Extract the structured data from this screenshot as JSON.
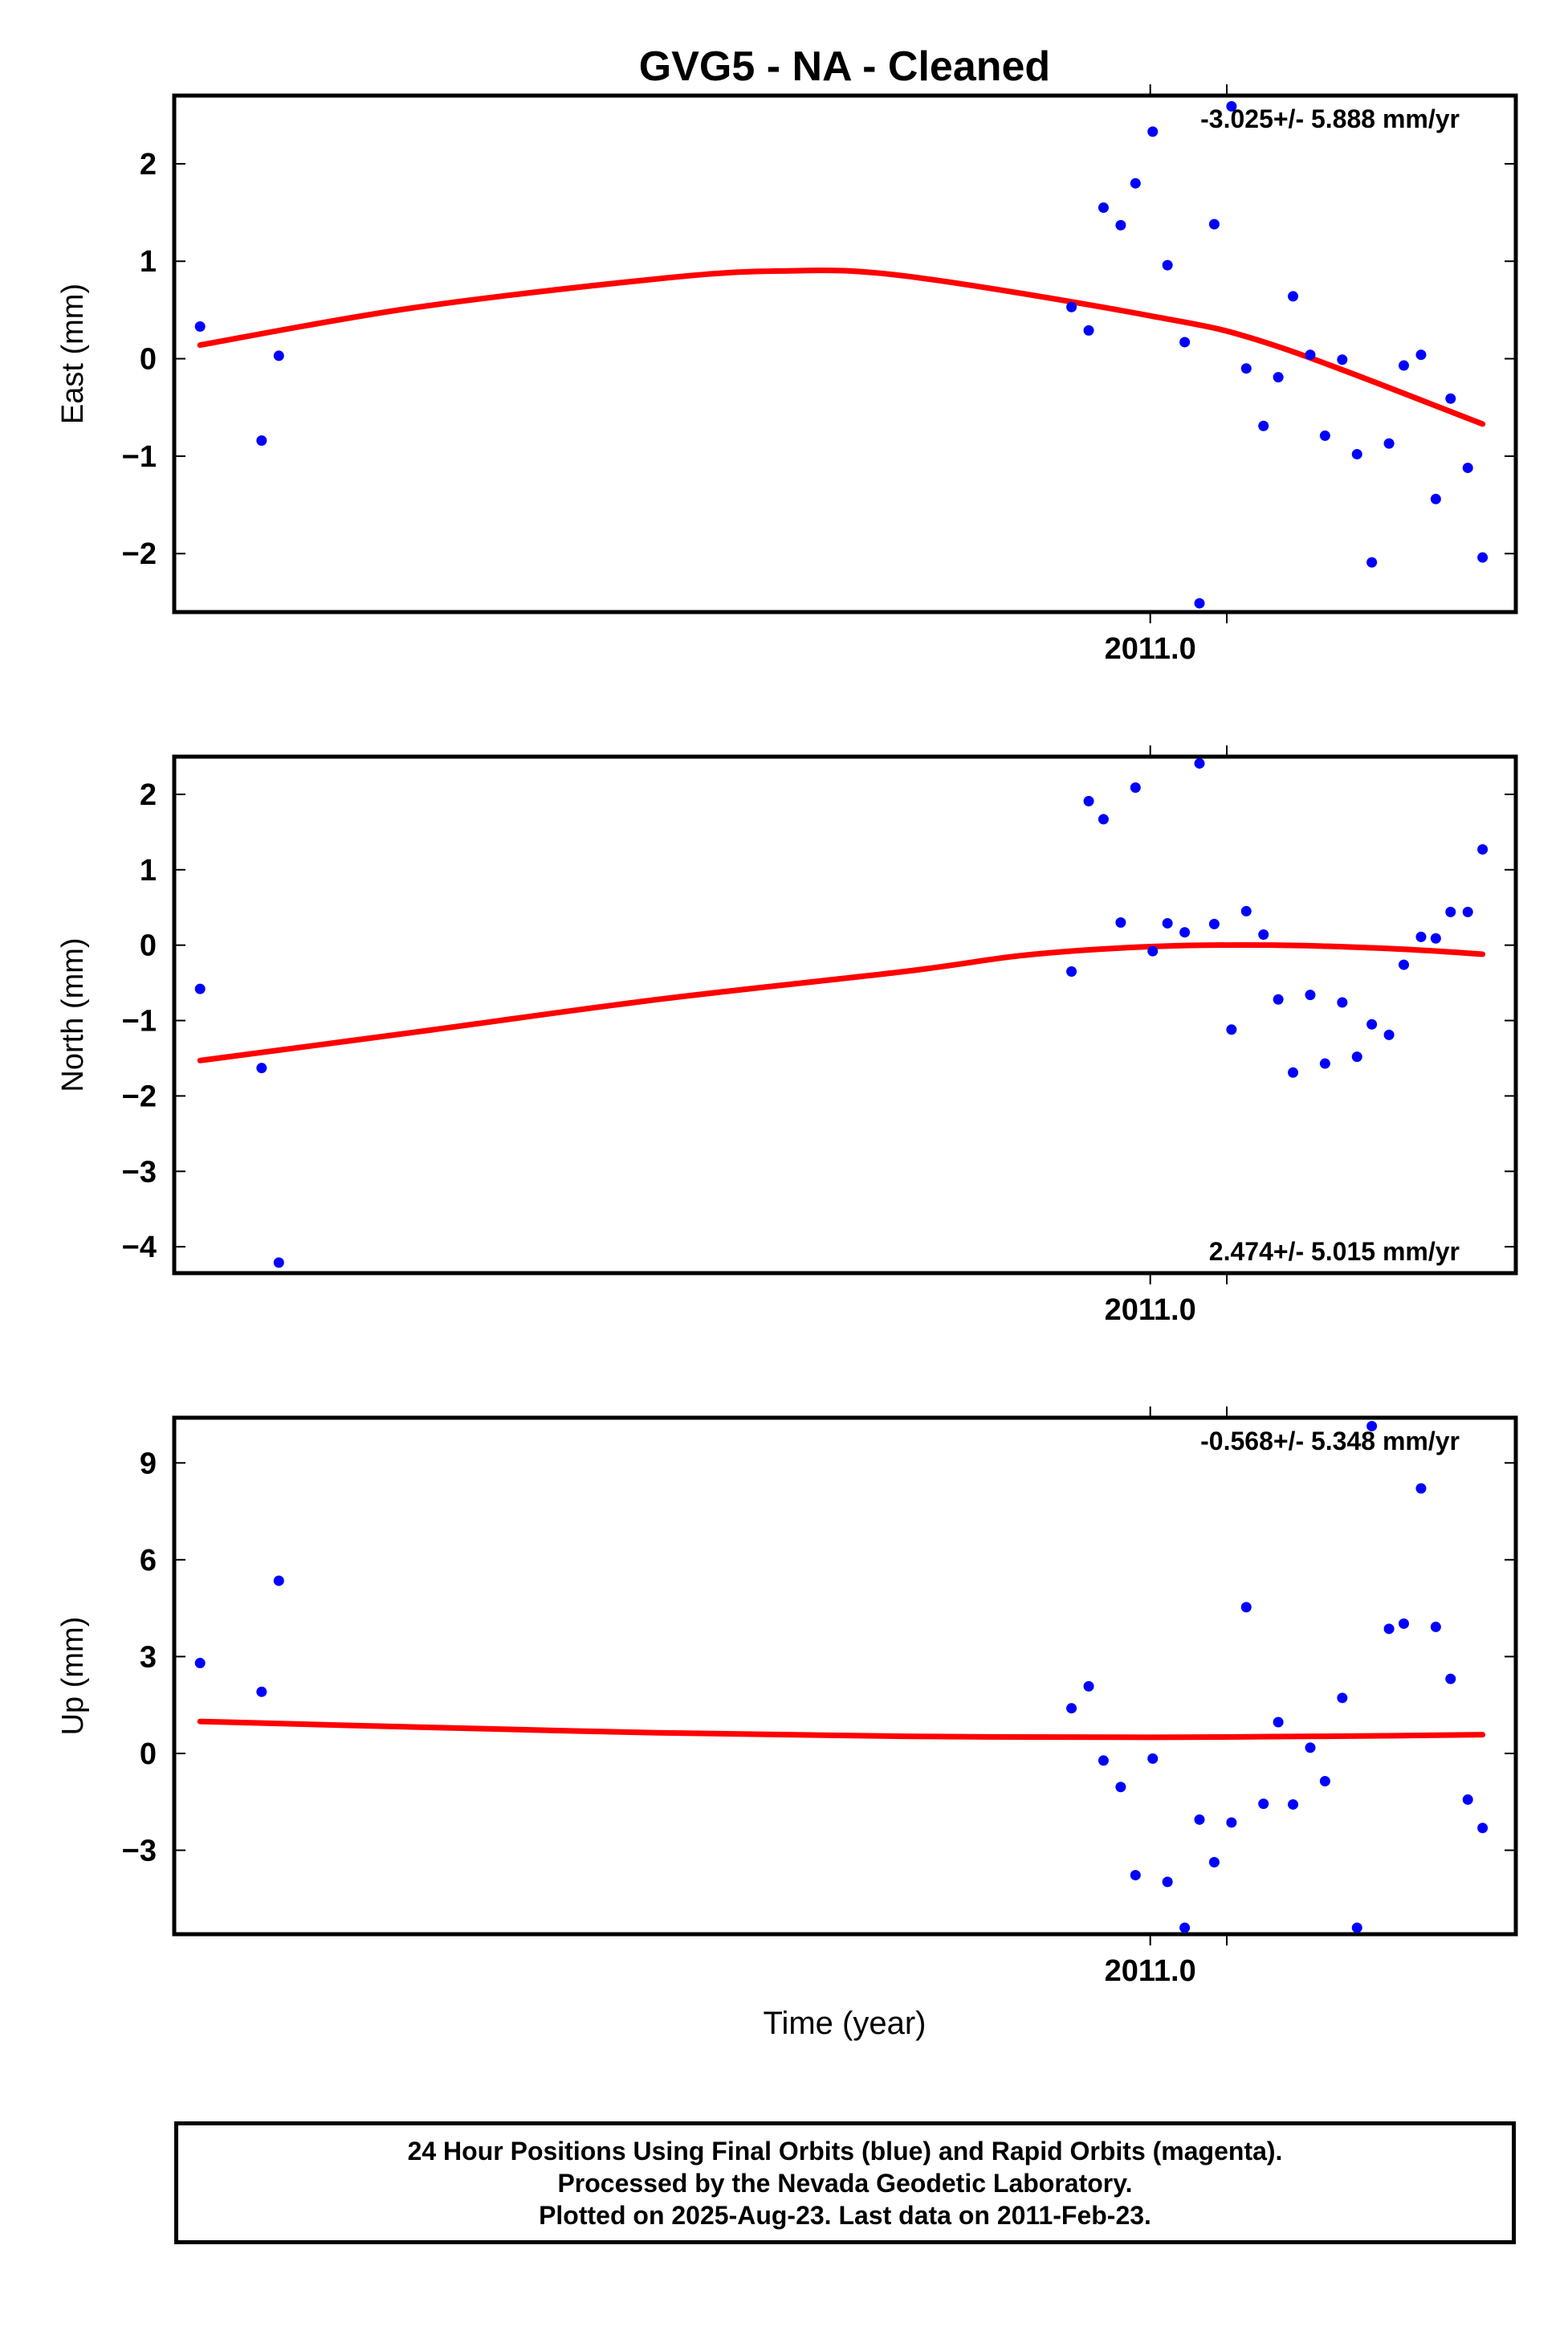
{
  "title": "GVG5  - NA - Cleaned",
  "xaxis_label": "Time (year)",
  "xaxis_tick": "2011.0",
  "footer": {
    "line1": "24 Hour Positions Using Final Orbits (blue) and Rapid Orbits (magenta).",
    "line2": "Processed by the Nevada Geodetic Laboratory.",
    "line3": "Plotted on 2025-Aug-23. Last data on 2011-Feb-23."
  },
  "colors": {
    "points": "#0000ff",
    "fit": "#ff0000",
    "frame": "#000000"
  },
  "chart_data": [
    {
      "type": "scatter",
      "ylabel": "East (mm)",
      "xlim": [
        2010.6035,
        2011.1485
      ],
      "ylim": [
        -2.6,
        2.7
      ],
      "yticks": [
        -2,
        -1,
        0,
        1,
        2
      ],
      "xticks": [
        2011.0
      ],
      "rate": "-3.025+/- 5.888 mm/yr",
      "rate_position": "top-right",
      "points": [
        [
          2010.614,
          0.33
        ],
        [
          2010.639,
          -0.84
        ],
        [
          2010.646,
          0.03
        ],
        [
          2010.968,
          0.53
        ],
        [
          2010.975,
          0.29
        ],
        [
          2010.981,
          1.55
        ],
        [
          2010.988,
          1.37
        ],
        [
          2010.994,
          1.8
        ],
        [
          2011.001,
          2.33
        ],
        [
          2011.007,
          0.96
        ],
        [
          2011.014,
          0.17
        ],
        [
          2011.02,
          -2.51
        ],
        [
          2011.026,
          1.38
        ],
        [
          2011.033,
          2.59
        ],
        [
          2011.039,
          -0.1
        ],
        [
          2011.046,
          -0.69
        ],
        [
          2011.052,
          -0.19
        ],
        [
          2011.058,
          0.64
        ],
        [
          2011.065,
          0.04
        ],
        [
          2011.071,
          -0.79
        ],
        [
          2011.078,
          -0.01
        ],
        [
          2011.084,
          -0.98
        ],
        [
          2011.09,
          -2.09
        ],
        [
          2011.097,
          -0.87
        ],
        [
          2011.103,
          -0.07
        ],
        [
          2011.11,
          0.04
        ],
        [
          2011.116,
          -1.44
        ],
        [
          2011.122,
          -0.41
        ],
        [
          2011.129,
          -1.12
        ],
        [
          2011.135,
          -2.04
        ]
      ],
      "fit": [
        [
          2010.614,
          0.14
        ],
        [
          2010.7,
          0.52
        ],
        [
          2010.8,
          0.82
        ],
        [
          2010.85,
          0.9
        ],
        [
          2010.9,
          0.85
        ],
        [
          2011.0,
          0.44
        ],
        [
          2011.05,
          0.14
        ],
        [
          2011.135,
          -0.67
        ]
      ]
    },
    {
      "type": "scatter",
      "ylabel": "North (mm)",
      "xlim": [
        2010.6035,
        2011.1485
      ],
      "ylim": [
        -4.35,
        2.5
      ],
      "yticks": [
        -4,
        -3,
        -2,
        -1,
        0,
        1,
        2
      ],
      "xticks": [
        2011.0
      ],
      "rate": "2.474+/- 5.015 mm/yr",
      "rate_position": "bottom-right",
      "points": [
        [
          2010.614,
          -0.58
        ],
        [
          2010.639,
          -1.63
        ],
        [
          2010.646,
          -4.21
        ],
        [
          2010.968,
          -0.35
        ],
        [
          2010.975,
          1.91
        ],
        [
          2010.981,
          1.67
        ],
        [
          2010.988,
          0.3
        ],
        [
          2010.994,
          2.09
        ],
        [
          2011.001,
          -0.08
        ],
        [
          2011.007,
          0.29
        ],
        [
          2011.014,
          0.17
        ],
        [
          2011.02,
          2.41
        ],
        [
          2011.026,
          0.28
        ],
        [
          2011.033,
          -1.12
        ],
        [
          2011.039,
          0.45
        ],
        [
          2011.046,
          0.14
        ],
        [
          2011.052,
          -0.72
        ],
        [
          2011.058,
          -1.69
        ],
        [
          2011.065,
          -0.66
        ],
        [
          2011.071,
          -1.57
        ],
        [
          2011.078,
          -0.76
        ],
        [
          2011.084,
          -1.48
        ],
        [
          2011.09,
          -1.05
        ],
        [
          2011.097,
          -1.19
        ],
        [
          2011.103,
          -0.26
        ],
        [
          2011.11,
          0.11
        ],
        [
          2011.116,
          0.09
        ],
        [
          2011.122,
          0.44
        ],
        [
          2011.129,
          0.44
        ],
        [
          2011.135,
          1.27
        ]
      ],
      "fit": [
        [
          2010.614,
          -1.53
        ],
        [
          2010.7,
          -1.16
        ],
        [
          2010.8,
          -0.72
        ],
        [
          2010.9,
          -0.35
        ],
        [
          2010.95,
          -0.13
        ],
        [
          2011.0,
          -0.02
        ],
        [
          2011.05,
          0.0
        ],
        [
          2011.1,
          -0.05
        ],
        [
          2011.135,
          -0.12
        ]
      ]
    },
    {
      "type": "scatter",
      "ylabel": "Up (mm)",
      "xlim": [
        2010.6035,
        2011.1485
      ],
      "ylim": [
        -5.6,
        10.4
      ],
      "yticks": [
        -3,
        0,
        3,
        6,
        9
      ],
      "xticks": [
        2011.0
      ],
      "rate": "-0.568+/- 5.348 mm/yr",
      "rate_position": "top-right",
      "points": [
        [
          2010.614,
          2.8
        ],
        [
          2010.639,
          1.91
        ],
        [
          2010.646,
          5.35
        ],
        [
          2010.968,
          1.4
        ],
        [
          2010.975,
          2.08
        ],
        [
          2010.981,
          -0.22
        ],
        [
          2010.988,
          -1.04
        ],
        [
          2010.994,
          -3.77
        ],
        [
          2011.001,
          -0.16
        ],
        [
          2011.007,
          -3.98
        ],
        [
          2011.014,
          -5.4
        ],
        [
          2011.02,
          -2.05
        ],
        [
          2011.026,
          -3.37
        ],
        [
          2011.033,
          -2.14
        ],
        [
          2011.039,
          4.53
        ],
        [
          2011.046,
          -1.56
        ],
        [
          2011.052,
          0.97
        ],
        [
          2011.058,
          -1.58
        ],
        [
          2011.065,
          0.18
        ],
        [
          2011.071,
          -0.86
        ],
        [
          2011.078,
          1.72
        ],
        [
          2011.084,
          -5.4
        ],
        [
          2011.09,
          10.14
        ],
        [
          2011.097,
          3.86
        ],
        [
          2011.103,
          4.02
        ],
        [
          2011.11,
          8.21
        ],
        [
          2011.116,
          3.92
        ],
        [
          2011.122,
          2.31
        ],
        [
          2011.129,
          -1.43
        ],
        [
          2011.135,
          -2.31
        ]
      ],
      "fit": [
        [
          2010.614,
          0.99
        ],
        [
          2010.7,
          0.82
        ],
        [
          2010.8,
          0.64
        ],
        [
          2010.9,
          0.53
        ],
        [
          2011.0,
          0.5
        ],
        [
          2011.05,
          0.52
        ],
        [
          2011.1,
          0.55
        ],
        [
          2011.135,
          0.58
        ]
      ]
    }
  ]
}
